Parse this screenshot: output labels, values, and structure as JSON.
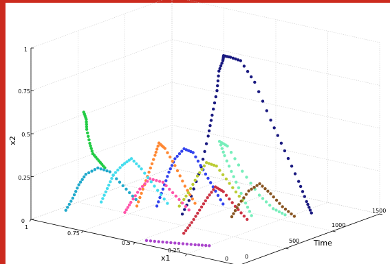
{
  "chart_data": {
    "type": "scatter",
    "projection": "3d",
    "title": "",
    "xlabel": "x1",
    "ylabel": "Time",
    "zlabel": "x2",
    "xlim": [
      0,
      1
    ],
    "ylim": [
      0,
      1500
    ],
    "zlim": [
      0,
      1
    ],
    "x_ticks": [
      "1",
      "0.75",
      "0.5",
      "0.25",
      "0"
    ],
    "y_ticks": [
      "0",
      "500",
      "1000",
      "1500"
    ],
    "z_ticks": [
      "0",
      "0.25",
      "0.5",
      "0.75",
      "1"
    ],
    "grid": true,
    "legend": "none",
    "series": [
      {
        "color": "#1a1a80",
        "points": [
          [
            0.52,
            550,
            0.05
          ],
          [
            0.5,
            600,
            0.15
          ],
          [
            0.47,
            640,
            0.32
          ],
          [
            0.45,
            670,
            0.5
          ],
          [
            0.44,
            690,
            0.62
          ],
          [
            0.43,
            720,
            0.76
          ],
          [
            0.43,
            740,
            0.87
          ],
          [
            0.42,
            760,
            0.93
          ],
          [
            0.43,
            790,
            0.95
          ],
          [
            0.41,
            820,
            0.94
          ],
          [
            0.38,
            860,
            0.92
          ],
          [
            0.33,
            900,
            0.8
          ],
          [
            0.28,
            960,
            0.58
          ],
          [
            0.24,
            1020,
            0.4
          ],
          [
            0.2,
            1080,
            0.22
          ],
          [
            0.18,
            1120,
            0.1
          ],
          [
            0.17,
            1150,
            0.03
          ]
        ]
      },
      {
        "color": "#22cc44",
        "points": [
          [
            0.78,
            300,
            0.3
          ],
          [
            0.8,
            280,
            0.34
          ],
          [
            0.82,
            260,
            0.38
          ],
          [
            0.83,
            250,
            0.44
          ],
          [
            0.84,
            240,
            0.52
          ],
          [
            0.84,
            235,
            0.58
          ],
          [
            0.85,
            230,
            0.62
          ]
        ]
      },
      {
        "color": "#77eebb",
        "points": [
          [
            0.3,
            800,
            0.05
          ],
          [
            0.32,
            760,
            0.15
          ],
          [
            0.35,
            720,
            0.28
          ],
          [
            0.38,
            690,
            0.4
          ],
          [
            0.4,
            680,
            0.48
          ],
          [
            0.38,
            720,
            0.45
          ],
          [
            0.34,
            790,
            0.3
          ],
          [
            0.29,
            860,
            0.16
          ],
          [
            0.25,
            920,
            0.08
          ],
          [
            0.22,
            980,
            0.04
          ]
        ]
      },
      {
        "color": "#3344ee",
        "points": [
          [
            0.62,
            500,
            0.08
          ],
          [
            0.6,
            520,
            0.18
          ],
          [
            0.58,
            540,
            0.28
          ],
          [
            0.56,
            560,
            0.36
          ],
          [
            0.53,
            590,
            0.42
          ],
          [
            0.5,
            620,
            0.4
          ],
          [
            0.47,
            660,
            0.3
          ],
          [
            0.44,
            700,
            0.2
          ],
          [
            0.41,
            740,
            0.1
          ]
        ]
      },
      {
        "color": "#ff8833",
        "points": [
          [
            0.68,
            420,
            0.08
          ],
          [
            0.66,
            440,
            0.18
          ],
          [
            0.64,
            460,
            0.28
          ],
          [
            0.62,
            480,
            0.38
          ],
          [
            0.61,
            500,
            0.45
          ],
          [
            0.59,
            520,
            0.42
          ],
          [
            0.56,
            560,
            0.32
          ],
          [
            0.53,
            600,
            0.2
          ],
          [
            0.5,
            640,
            0.1
          ]
        ]
      },
      {
        "color": "#cc3344",
        "points": [
          [
            0.4,
            300,
            0.02
          ],
          [
            0.38,
            340,
            0.08
          ],
          [
            0.36,
            380,
            0.15
          ],
          [
            0.34,
            420,
            0.22
          ],
          [
            0.32,
            460,
            0.28
          ],
          [
            0.3,
            500,
            0.25
          ],
          [
            0.27,
            560,
            0.16
          ],
          [
            0.24,
            620,
            0.08
          ]
        ]
      },
      {
        "color": "#22aacc",
        "points": [
          [
            0.9,
            150,
            0.05
          ],
          [
            0.88,
            180,
            0.12
          ],
          [
            0.86,
            200,
            0.2
          ],
          [
            0.84,
            230,
            0.26
          ],
          [
            0.8,
            270,
            0.3
          ],
          [
            0.76,
            310,
            0.28
          ],
          [
            0.72,
            360,
            0.2
          ],
          [
            0.68,
            410,
            0.12
          ]
        ]
      },
      {
        "color": "#aa44cc",
        "points": [
          [
            0.48,
            80,
            0.0
          ],
          [
            0.42,
            120,
            0.0
          ],
          [
            0.36,
            160,
            0.0
          ],
          [
            0.3,
            200,
            0.0
          ],
          [
            0.25,
            240,
            0.0
          ]
        ]
      },
      {
        "color": "#bbcc33",
        "points": [
          [
            0.58,
            650,
            0.06
          ],
          [
            0.55,
            680,
            0.14
          ],
          [
            0.52,
            710,
            0.24
          ],
          [
            0.49,
            740,
            0.32
          ],
          [
            0.46,
            780,
            0.3
          ],
          [
            0.42,
            830,
            0.2
          ],
          [
            0.38,
            880,
            0.1
          ]
        ]
      },
      {
        "color": "#ff55aa",
        "points": [
          [
            0.72,
            380,
            0.04
          ],
          [
            0.7,
            400,
            0.1
          ],
          [
            0.67,
            430,
            0.18
          ],
          [
            0.64,
            470,
            0.24
          ],
          [
            0.6,
            520,
            0.22
          ],
          [
            0.56,
            570,
            0.14
          ],
          [
            0.52,
            620,
            0.06
          ]
        ]
      },
      {
        "color": "#885522",
        "points": [
          [
            0.35,
            700,
            0.05
          ],
          [
            0.33,
            730,
            0.12
          ],
          [
            0.3,
            770,
            0.2
          ],
          [
            0.27,
            820,
            0.24
          ],
          [
            0.24,
            870,
            0.18
          ],
          [
            0.21,
            930,
            0.1
          ],
          [
            0.18,
            990,
            0.04
          ]
        ]
      },
      {
        "color": "#44ddee",
        "points": [
          [
            0.82,
            350,
            0.08
          ],
          [
            0.8,
            370,
            0.16
          ],
          [
            0.78,
            390,
            0.24
          ],
          [
            0.75,
            420,
            0.3
          ],
          [
            0.72,
            450,
            0.34
          ],
          [
            0.69,
            490,
            0.28
          ],
          [
            0.65,
            540,
            0.18
          ],
          [
            0.61,
            590,
            0.08
          ]
        ]
      }
    ]
  }
}
